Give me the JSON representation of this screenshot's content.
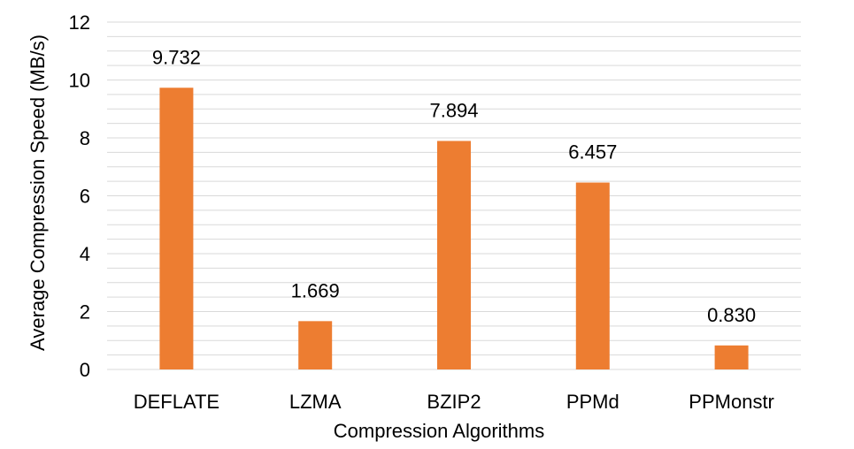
{
  "chart_data": {
    "type": "bar",
    "title": "",
    "xlabel": "Compression Algorithms",
    "ylabel": "Average Compression Speed (MB/s)",
    "categories": [
      "DEFLATE",
      "LZMA",
      "BZIP2",
      "PPMd",
      "PPMonstr"
    ],
    "values": [
      9.732,
      1.669,
      7.894,
      6.457,
      0.83
    ],
    "data_labels": [
      "9.732",
      "1.669",
      "7.894",
      "6.457",
      "0.830"
    ],
    "ylim": [
      0,
      12
    ],
    "yticks": [
      0,
      2,
      4,
      6,
      8,
      10,
      12
    ],
    "grid": true,
    "legend": "none",
    "colors": {
      "bar": "#ED7D31",
      "grid": "#D9D9D9",
      "text": "#000000"
    }
  }
}
